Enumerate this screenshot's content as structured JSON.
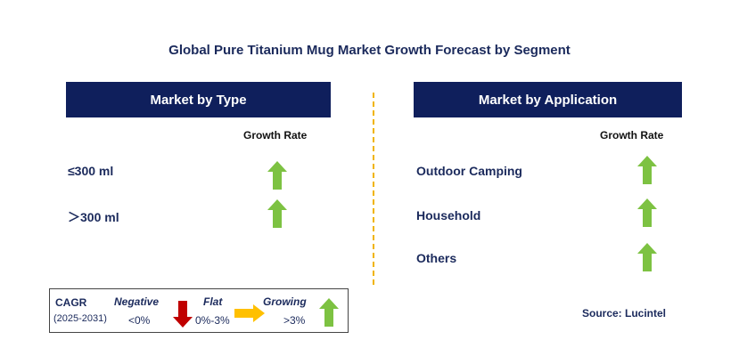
{
  "title": "Global Pure Titanium Mug Market Growth Forecast by Segment",
  "type_panel": {
    "header": "Market by Type",
    "column_header": "Growth Rate",
    "rows": [
      {
        "label": "≤300 ml",
        "trend": "growing"
      },
      {
        "label": "＞300 ml",
        "trend": "growing"
      }
    ]
  },
  "application_panel": {
    "header": "Market by Application",
    "column_header": "Growth Rate",
    "rows": [
      {
        "label": "Outdoor Camping",
        "trend": "growing"
      },
      {
        "label": "Household",
        "trend": "growing"
      },
      {
        "label": "Others",
        "trend": "growing"
      }
    ]
  },
  "legend": {
    "cagr_label": "CAGR",
    "period": "(2025-2031)",
    "negative": {
      "label": "Negative",
      "range": "<0%",
      "icon": "red-down-arrow-icon"
    },
    "flat": {
      "label": "Flat",
      "range": "0%-3%",
      "icon": "yellow-right-arrow-icon"
    },
    "growing": {
      "label": "Growing",
      "range": ">3%",
      "icon": "green-up-arrow-icon"
    }
  },
  "source": "Source: Lucintel",
  "colors": {
    "header_bg": "#0f1f5c",
    "text_navy": "#1b2a5c",
    "green_arrow": "#7dc242",
    "red_arrow": "#c00000",
    "yellow_arrow": "#ffc000",
    "divider": "#f0b400"
  }
}
